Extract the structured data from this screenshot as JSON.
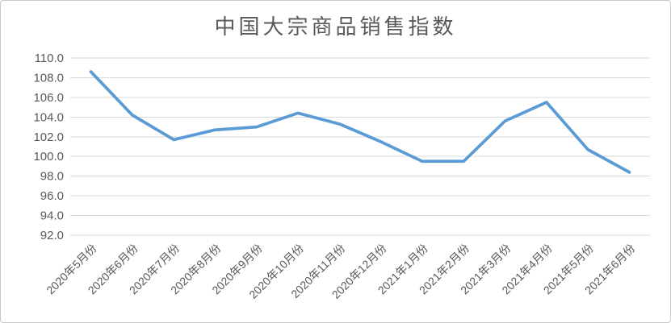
{
  "chart_data": {
    "type": "line",
    "title": "中国大宗商品销售指数",
    "categories": [
      "2020年5月份",
      "2020年6月份",
      "2020年7月份",
      "2020年8月份",
      "2020年9月份",
      "2020年10月份",
      "2020年11月份",
      "2020年12月份",
      "2021年1月份",
      "2021年2月份",
      "2021年3月份",
      "2021年4月份",
      "2021年5月份",
      "2021年6月份"
    ],
    "series": [
      {
        "name": "销售指数",
        "values": [
          108.6,
          104.2,
          101.7,
          102.7,
          103.0,
          104.4,
          103.3,
          101.5,
          99.5,
          99.5,
          103.6,
          105.5,
          100.7,
          98.4
        ]
      }
    ],
    "xlabel": "",
    "ylabel": "",
    "ylim": [
      92.0,
      110.0
    ],
    "ytick_step": 2.0,
    "ytick_labels": [
      "110.0",
      "108.0",
      "106.0",
      "104.0",
      "102.0",
      "100.0",
      "98.0",
      "96.0",
      "94.0",
      "92.0"
    ],
    "grid": true,
    "legend_position": "none",
    "colors": {
      "line": "#5B9BD5",
      "gridline": "#D9D9D9",
      "axis_text": "#595959",
      "title_text": "#595959",
      "frame_border": "#C9C9C9"
    }
  }
}
